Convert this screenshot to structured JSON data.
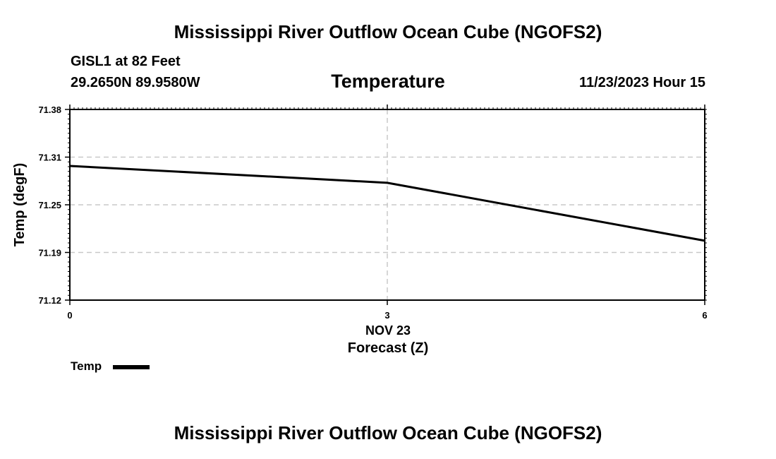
{
  "page": {
    "title_top": "Mississippi River Outflow Ocean Cube (NGOFS2)",
    "title_bottom": "Mississippi River Outflow Ocean Cube (NGOFS2)",
    "station": "GISL1 at 82 Feet",
    "coords": "29.2650N  89.9580W",
    "datetime": "11/23/2023 Hour 15"
  },
  "chart_data": {
    "type": "line",
    "title": "Temperature",
    "xlabel": "Forecast (Z)",
    "x_date_label": "NOV 23",
    "ylabel": "Temp (degF)",
    "x": [
      0,
      3,
      6
    ],
    "x_ticks": [
      "0",
      "3",
      "6"
    ],
    "y_ticks": [
      "71.38",
      "71.31",
      "71.25",
      "71.19",
      "71.12"
    ],
    "ylim": [
      71.12,
      71.38
    ],
    "xlim": [
      0,
      6
    ],
    "grid": true,
    "series": [
      {
        "name": "Temp",
        "color": "#000000",
        "values": [
          71.303,
          71.28,
          71.201
        ]
      }
    ],
    "legend": {
      "position": "bottom-left",
      "label": "Temp"
    }
  }
}
